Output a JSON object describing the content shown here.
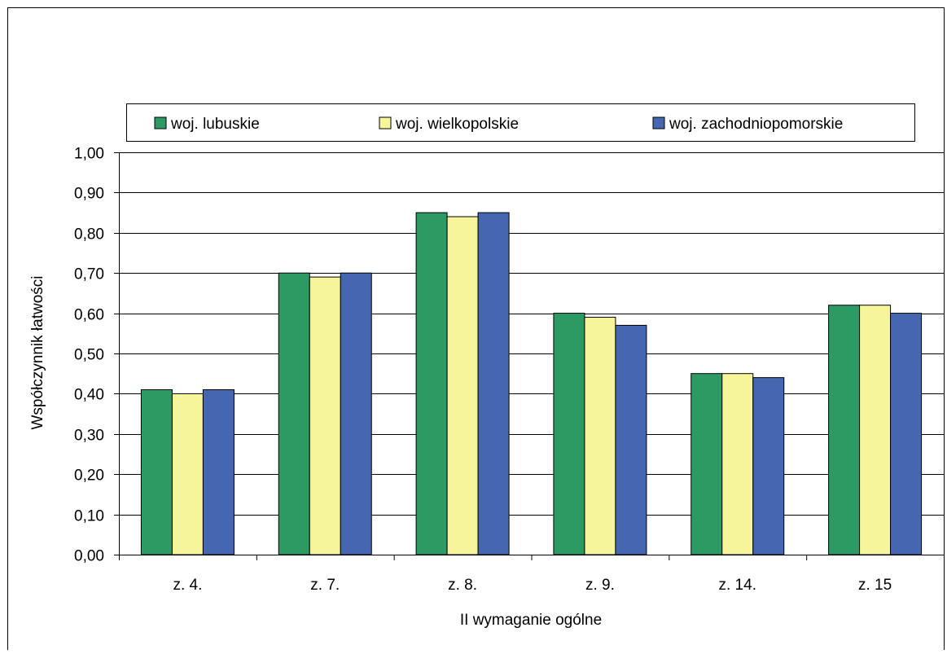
{
  "chart_data": {
    "type": "bar",
    "title": "",
    "xlabel": "II wymaganie ogólne",
    "ylabel": "Współczynnik łatwości",
    "ylim": [
      0,
      1.0
    ],
    "ytick_step": 0.1,
    "yticks": [
      "0,00",
      "0,10",
      "0,20",
      "0,30",
      "0,40",
      "0,50",
      "0,60",
      "0,70",
      "0,80",
      "0,90",
      "1,00"
    ],
    "grid": true,
    "legend_position": "top",
    "categories": [
      "z. 4.",
      "z. 7.",
      "z. 8.",
      "z. 9.",
      "z. 14.",
      "z. 15"
    ],
    "series": [
      {
        "name": "woj. lubuskie",
        "color": "#2e9a63",
        "values": [
          0.41,
          0.7,
          0.85,
          0.6,
          0.45,
          0.62
        ]
      },
      {
        "name": "woj. wielkopolskie",
        "color": "#f7f59b",
        "values": [
          0.4,
          0.69,
          0.84,
          0.59,
          0.45,
          0.62
        ]
      },
      {
        "name": "woj. zachodniopomorskie",
        "color": "#4467b0",
        "values": [
          0.41,
          0.7,
          0.85,
          0.57,
          0.44,
          0.6
        ]
      }
    ]
  }
}
